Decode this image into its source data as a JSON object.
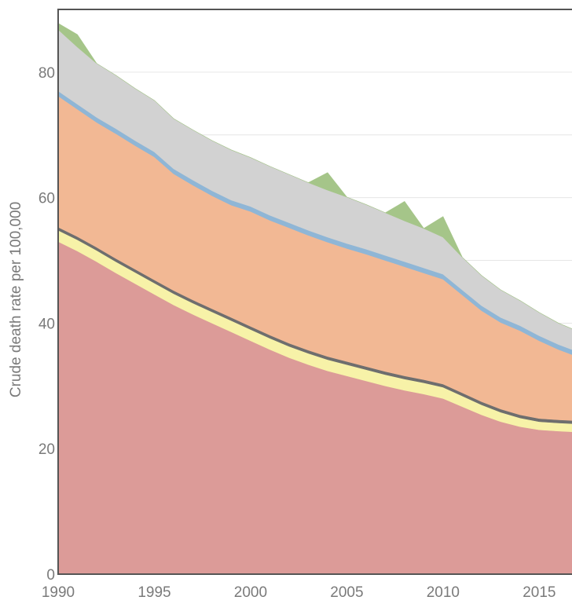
{
  "chart_data": {
    "type": "area",
    "ylabel": "Crude death rate per 100,000",
    "xlabel": "",
    "xlim": [
      1990,
      2016.7
    ],
    "ylim": [
      0,
      90
    ],
    "x_ticks": [
      1990,
      1995,
      2000,
      2005,
      2010,
      2015
    ],
    "y_ticks": [
      0,
      20,
      40,
      60,
      80
    ],
    "grid": "horizontal",
    "stacking": "stacked",
    "x": [
      1990,
      1991,
      1992,
      1993,
      1994,
      1995,
      1996,
      1997,
      1998,
      1999,
      2000,
      2001,
      2002,
      2003,
      2004,
      2005,
      2006,
      2007,
      2008,
      2009,
      2010,
      2011,
      2012,
      2013,
      2014,
      2015,
      2016,
      2016.7
    ],
    "series": [
      {
        "color": "#dc9b98",
        "values": [
          53.0,
          51.5,
          49.8,
          48.0,
          46.3,
          44.6,
          42.9,
          41.4,
          40.0,
          38.6,
          37.2,
          35.8,
          34.5,
          33.4,
          32.4,
          31.6,
          30.8,
          30.0,
          29.3,
          28.7,
          28.0,
          26.7,
          25.4,
          24.3,
          23.5,
          23.0,
          22.8,
          22.7
        ]
      },
      {
        "color": "#f7f2a8",
        "values": [
          1.8,
          1.8,
          1.8,
          1.8,
          1.8,
          1.8,
          1.8,
          1.8,
          1.8,
          1.8,
          1.8,
          1.8,
          1.8,
          1.8,
          1.8,
          1.8,
          1.8,
          1.8,
          1.8,
          1.8,
          1.8,
          1.7,
          1.6,
          1.5,
          1.4,
          1.3,
          1.3,
          1.3
        ]
      },
      {
        "color": "#6e6e6e",
        "values": [
          0.5,
          0.5,
          0.5,
          0.5,
          0.5,
          0.5,
          0.5,
          0.5,
          0.5,
          0.5,
          0.5,
          0.5,
          0.5,
          0.5,
          0.5,
          0.5,
          0.5,
          0.5,
          0.5,
          0.5,
          0.5,
          0.5,
          0.5,
          0.5,
          0.5,
          0.5,
          0.5,
          0.5
        ]
      },
      {
        "color": "#f2b894",
        "values": [
          20.9,
          20.3,
          19.9,
          19.9,
          19.7,
          19.6,
          18.6,
          18.3,
          18.0,
          17.9,
          18.3,
          18.3,
          18.4,
          18.3,
          18.2,
          18.0,
          17.9,
          17.7,
          17.4,
          17.0,
          16.7,
          15.6,
          14.5,
          13.8,
          13.4,
          12.4,
          11.2,
          10.5
        ]
      },
      {
        "color": "#8fb6d6",
        "values": [
          0.8,
          0.8,
          0.8,
          0.8,
          0.8,
          0.8,
          0.8,
          0.8,
          0.8,
          0.8,
          0.8,
          0.8,
          0.8,
          0.8,
          0.8,
          0.8,
          0.8,
          0.8,
          0.8,
          0.8,
          0.8,
          0.8,
          0.8,
          0.8,
          0.8,
          0.8,
          0.8,
          0.8
        ]
      },
      {
        "color": "#d2d2d2",
        "values": [
          9.8,
          9.1,
          8.6,
          8.5,
          8.3,
          8.2,
          8.0,
          8.0,
          8.0,
          8.0,
          7.8,
          7.8,
          7.7,
          7.6,
          7.5,
          7.4,
          7.1,
          6.8,
          6.5,
          6.3,
          5.9,
          5.2,
          4.8,
          4.4,
          4.0,
          3.7,
          3.4,
          3.3
        ]
      },
      {
        "color": "#a5c589",
        "values": [
          1.0,
          2.0,
          0.0,
          0.0,
          0.0,
          0.0,
          0.0,
          0.0,
          0.0,
          0.0,
          0.0,
          0.0,
          0.0,
          0.0,
          2.8,
          0.0,
          0.0,
          0.0,
          3.1,
          0.0,
          3.3,
          0.0,
          0.0,
          0.0,
          0.0,
          0.0,
          0.0,
          0.0
        ]
      }
    ]
  }
}
